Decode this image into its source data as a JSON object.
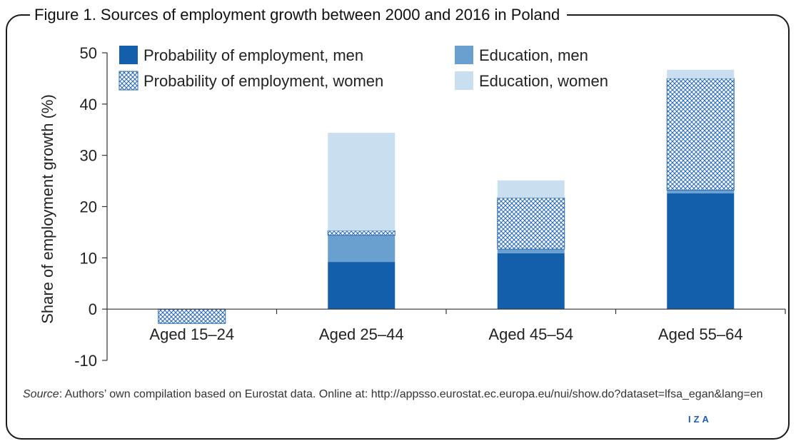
{
  "figure": {
    "title": "Figure 1. Sources of employment growth between 2000 and 2016 in Poland",
    "source_label": "Source",
    "source_text": ": Authors’ own compilation based on Eurostat data. Online at: http://appsso.eurostat.ec.europa.eu/nui/show.do?dataset=lfsa_egan&lang=en",
    "brand": "IZA"
  },
  "chart_data": {
    "type": "bar",
    "stacked": true,
    "title": "",
    "xlabel": "",
    "ylabel": "Share of employment growth (%)",
    "ylim": [
      -10,
      50
    ],
    "yticks": [
      -10,
      0,
      10,
      20,
      30,
      40,
      50
    ],
    "categories": [
      "Aged 15–24",
      "Aged 25–44",
      "Aged 45–54",
      "Aged 55–64"
    ],
    "series": [
      {
        "name": "Probability of employment, men",
        "values": [
          0,
          9.2,
          10.9,
          22.6
        ],
        "color": "#135fab",
        "pattern": "solid"
      },
      {
        "name": "Education, men",
        "values": [
          0,
          5.2,
          0.8,
          0.6
        ],
        "color": "#6aa0cf",
        "pattern": "solid"
      },
      {
        "name": "Probability of employment, women",
        "values": [
          -2.8,
          0.9,
          10.0,
          21.8
        ],
        "color": "#2d6db3",
        "pattern": "crosshatch"
      },
      {
        "name": "Education, women",
        "values": [
          0,
          19.1,
          3.4,
          1.7
        ],
        "color": "#c9dff0",
        "pattern": "solid"
      }
    ],
    "legend": {
      "position": "top-left",
      "columns": 2
    },
    "grid": false
  }
}
